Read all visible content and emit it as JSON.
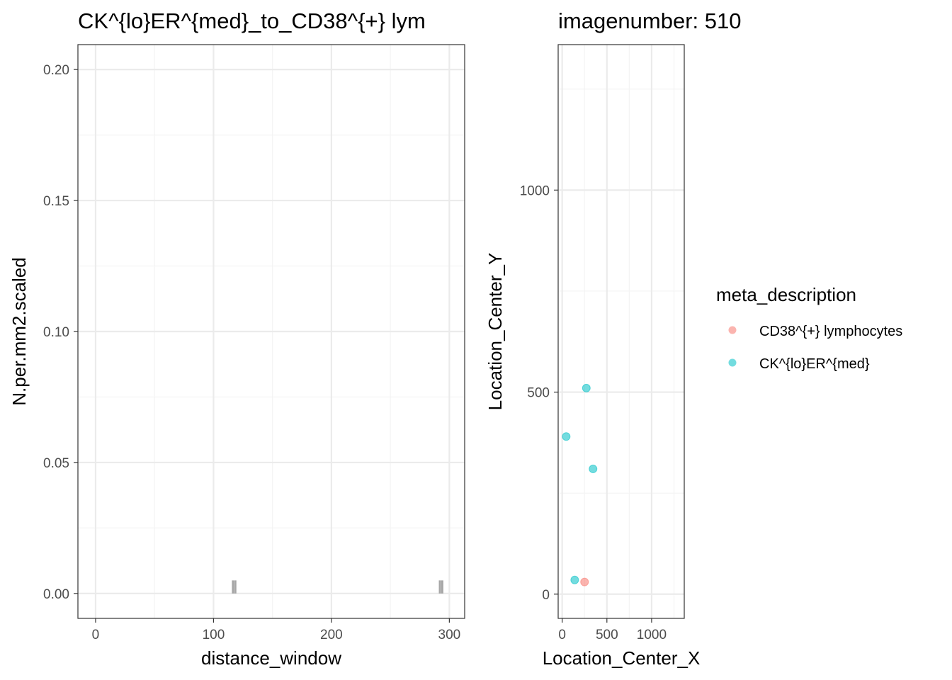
{
  "colors": {
    "background": "#ffffff",
    "grid_major": "#ebebeb",
    "grid_minor": "#f4f4f4",
    "panel_border": "#333333",
    "tick_text": "#4d4d4d",
    "bar_fill": "#a6a6a6",
    "cd38": "#f8766d",
    "ck": "#00bfc4"
  },
  "chart_data": [
    {
      "type": "bar",
      "title": "CK^{lo}ER^{med}_to_CD38^{+} lym",
      "xlabel": "distance_window",
      "ylabel": "N.per.mm2.scaled",
      "xlim": [
        -15,
        313
      ],
      "ylim": [
        -0.0095,
        0.2095
      ],
      "x_ticks": [
        0,
        100,
        200,
        300
      ],
      "x_tick_labels": [
        "0",
        "100",
        "200",
        "300"
      ],
      "y_ticks": [
        0,
        0.05,
        0.1,
        0.15,
        0.2
      ],
      "y_tick_labels": [
        "0.00",
        "0.05",
        "0.10",
        "0.15",
        "0.20"
      ],
      "grid": true,
      "bars": [
        {
          "x": 116.5,
          "y": 0.005
        },
        {
          "x": 118.5,
          "y": 0.005
        },
        {
          "x": 292.0,
          "y": 0.005
        },
        {
          "x": 294.0,
          "y": 0.005
        }
      ]
    },
    {
      "type": "scatter",
      "title": "imagenumber:  510",
      "xlabel": "Location_Center_X",
      "ylabel": "Location_Center_Y",
      "xlim": [
        -45,
        1365
      ],
      "ylim": [
        -60,
        1360
      ],
      "x_ticks": [
        0,
        500,
        1000
      ],
      "x_tick_labels": [
        "0",
        "500",
        "1000"
      ],
      "y_ticks": [
        0,
        500,
        1000
      ],
      "y_tick_labels": [
        "0",
        "500",
        "1000"
      ],
      "grid": true,
      "legend_title": "meta_description",
      "legend_position": "right",
      "series": [
        {
          "name": "CD38^{+} lymphocytes",
          "color_key": "cd38",
          "points": [
            {
              "x": 250,
              "y": 30
            }
          ]
        },
        {
          "name": "CK^{lo}ER^{med}",
          "color_key": "ck",
          "points": [
            {
              "x": 270,
              "y": 510
            },
            {
              "x": 45,
              "y": 390
            },
            {
              "x": 345,
              "y": 310
            },
            {
              "x": 140,
              "y": 35
            }
          ]
        }
      ]
    }
  ]
}
